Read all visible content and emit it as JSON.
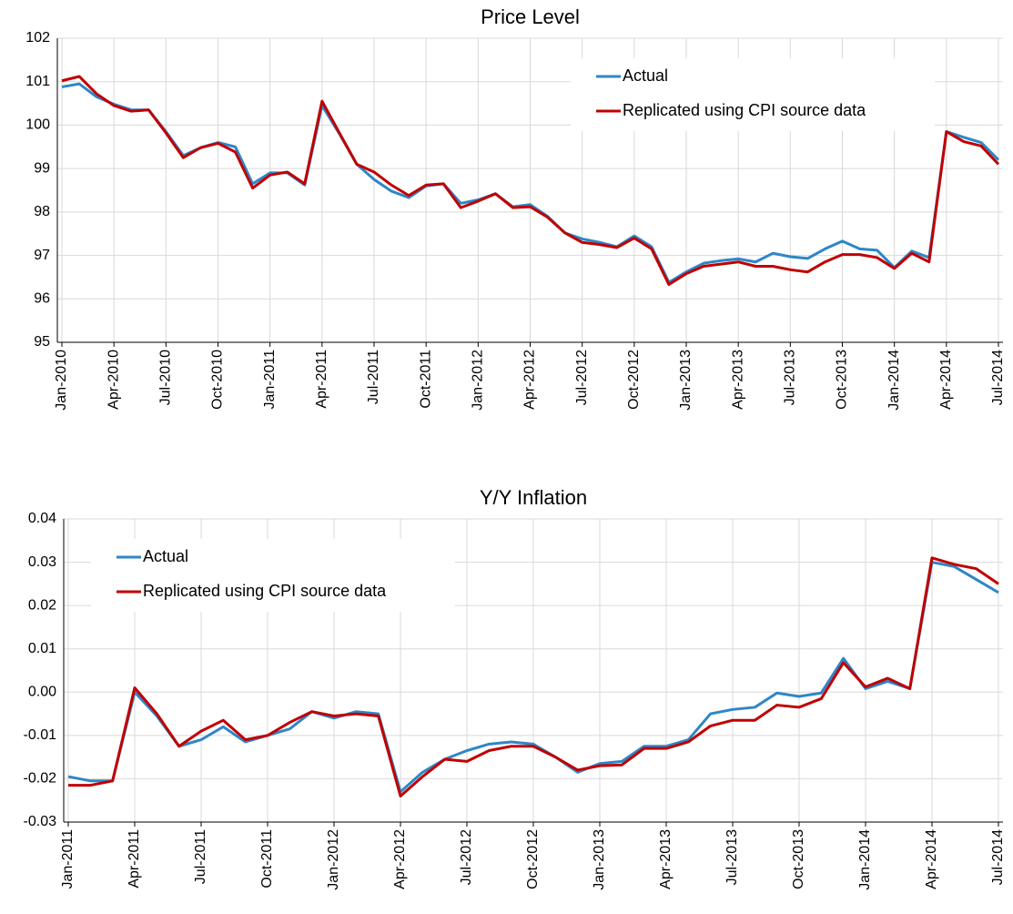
{
  "chart_data": [
    {
      "type": "line",
      "title": "Price Level",
      "categories": [
        "Jan-2010",
        null,
        null,
        "Apr-2010",
        null,
        null,
        "Jul-2010",
        null,
        null,
        "Oct-2010",
        null,
        null,
        "Jan-2011",
        null,
        null,
        "Apr-2011",
        null,
        null,
        "Jul-2011",
        null,
        null,
        "Oct-2011",
        null,
        null,
        "Jan-2012",
        null,
        null,
        "Apr-2012",
        null,
        null,
        "Jul-2012",
        null,
        null,
        "Oct-2012",
        null,
        null,
        "Jan-2013",
        null,
        null,
        "Apr-2013",
        null,
        null,
        "Jul-2013",
        null,
        null,
        "Oct-2013",
        null,
        null,
        "Jan-2014",
        null,
        null,
        "Apr-2014",
        null,
        null,
        "Jul-2014"
      ],
      "series": [
        {
          "name": "Actual",
          "color": "#2e86c8",
          "values": [
            100.88,
            100.95,
            100.65,
            100.48,
            100.35,
            100.35,
            99.85,
            99.3,
            99.48,
            99.6,
            99.5,
            98.65,
            98.9,
            98.9,
            98.62,
            100.45,
            99.8,
            99.1,
            98.75,
            98.48,
            98.33,
            98.6,
            98.65,
            98.2,
            98.28,
            98.42,
            98.12,
            98.17,
            97.9,
            97.52,
            97.38,
            97.3,
            97.2,
            97.45,
            97.2,
            96.38,
            96.62,
            96.82,
            96.88,
            96.92,
            96.85,
            97.05,
            96.97,
            96.93,
            97.15,
            97.33,
            97.15,
            97.12,
            96.72,
            97.1,
            96.95,
            99.85,
            99.72,
            99.6,
            99.2
          ]
        },
        {
          "name": "Replicated using CPI source data",
          "color": "#c00000",
          "values": [
            101.02,
            101.12,
            100.72,
            100.45,
            100.32,
            100.35,
            99.82,
            99.25,
            99.48,
            99.58,
            99.38,
            98.55,
            98.85,
            98.92,
            98.65,
            100.55,
            99.82,
            99.1,
            98.92,
            98.62,
            98.38,
            98.62,
            98.65,
            98.1,
            98.25,
            98.42,
            98.1,
            98.12,
            97.88,
            97.52,
            97.3,
            97.25,
            97.18,
            97.4,
            97.15,
            96.33,
            96.58,
            96.75,
            96.8,
            96.85,
            96.75,
            96.75,
            96.67,
            96.62,
            96.85,
            97.02,
            97.02,
            96.95,
            96.7,
            97.05,
            96.85,
            99.85,
            99.62,
            99.52,
            99.1
          ]
        }
      ],
      "ylim": [
        95,
        102
      ],
      "yticks": [
        95,
        96,
        97,
        98,
        99,
        100,
        101,
        102
      ],
      "grid": true,
      "legend": "top-right"
    },
    {
      "type": "line",
      "title": "Y/Y Inflation",
      "categories": [
        "Jan-2011",
        null,
        null,
        "Apr-2011",
        null,
        null,
        "Jul-2011",
        null,
        null,
        "Oct-2011",
        null,
        null,
        "Jan-2012",
        null,
        null,
        "Apr-2012",
        null,
        null,
        "Jul-2012",
        null,
        null,
        "Oct-2012",
        null,
        null,
        "Jan-2013",
        null,
        null,
        "Apr-2013",
        null,
        null,
        "Jul-2013",
        null,
        null,
        "Oct-2013",
        null,
        null,
        "Jan-2014",
        null,
        null,
        "Apr-2014",
        null,
        null,
        "Jul-2014"
      ],
      "series": [
        {
          "name": "Actual",
          "color": "#2e86c8",
          "values": [
            -0.0195,
            -0.0205,
            -0.0205,
            0.0,
            -0.0055,
            -0.0125,
            -0.011,
            -0.008,
            -0.0115,
            -0.01,
            -0.0085,
            -0.0045,
            -0.006,
            -0.0045,
            -0.005,
            -0.023,
            -0.0185,
            -0.0155,
            -0.0135,
            -0.012,
            -0.0115,
            -0.012,
            -0.015,
            -0.0185,
            -0.0165,
            -0.016,
            -0.0125,
            -0.0125,
            -0.011,
            -0.005,
            -0.004,
            -0.0035,
            -0.0002,
            -0.001,
            -0.0002,
            0.0078,
            0.0008,
            0.0025,
            0.0008,
            0.03,
            0.029,
            0.026,
            0.023
          ]
        },
        {
          "name": "Replicated using CPI source data",
          "color": "#c00000",
          "values": [
            -0.0215,
            -0.0215,
            -0.0205,
            0.001,
            -0.005,
            -0.0125,
            -0.009,
            -0.0065,
            -0.011,
            -0.01,
            -0.007,
            -0.0045,
            -0.0055,
            -0.005,
            -0.0055,
            -0.024,
            -0.0195,
            -0.0155,
            -0.016,
            -0.0135,
            -0.0125,
            -0.0125,
            -0.015,
            -0.018,
            -0.017,
            -0.0168,
            -0.013,
            -0.013,
            -0.0115,
            -0.0078,
            -0.0065,
            -0.0065,
            -0.003,
            -0.0035,
            -0.0015,
            0.0068,
            0.0012,
            0.0032,
            0.0008,
            0.031,
            0.0295,
            0.0285,
            0.025
          ]
        }
      ],
      "ylim": [
        -0.03,
        0.04
      ],
      "yticks": [
        -0.03,
        -0.02,
        -0.01,
        {
          "value": 0,
          "label": "0.00"
        },
        0.01,
        0.02,
        0.03,
        0.04
      ],
      "grid": true,
      "legend": "top-left"
    }
  ]
}
